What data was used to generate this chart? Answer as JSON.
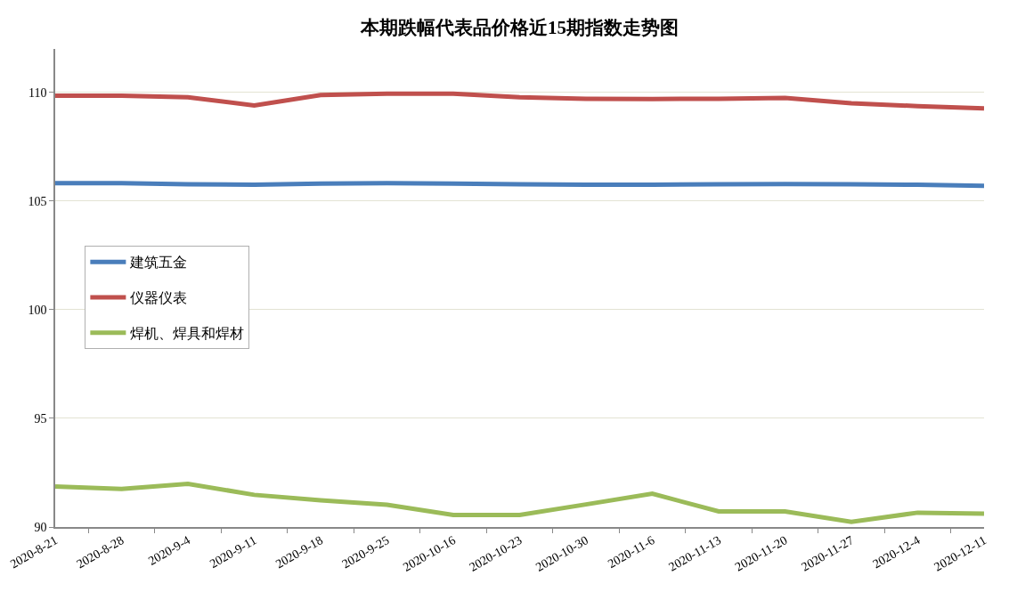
{
  "chart_data": {
    "type": "line",
    "title": "本期跌幅代表品价格近15期指数走势图",
    "categories": [
      "2020-8-21",
      "2020-8-28",
      "2020-9-4",
      "2020-9-11",
      "2020-9-18",
      "2020-9-25",
      "2020-10-16",
      "2020-10-23",
      "2020-10-30",
      "2020-11-6",
      "2020-11-13",
      "2020-11-20",
      "2020-11-27",
      "2020-12-4",
      "2020-12-11"
    ],
    "series": [
      {
        "name": "建筑五金",
        "color": "#4a7ebb",
        "values": [
          105.82,
          105.82,
          105.77,
          105.75,
          105.8,
          105.82,
          105.8,
          105.77,
          105.75,
          105.75,
          105.77,
          105.78,
          105.77,
          105.75,
          105.7
        ]
      },
      {
        "name": "仪器仪表",
        "color": "#c0504d",
        "values": [
          109.85,
          109.85,
          109.78,
          109.4,
          109.88,
          109.94,
          109.94,
          109.78,
          109.71,
          109.7,
          109.71,
          109.75,
          109.5,
          109.37,
          109.27
        ]
      },
      {
        "name": "焊机、焊具和焊材",
        "color": "#9bbb59",
        "values": [
          91.86,
          91.75,
          91.99,
          91.48,
          91.23,
          91.02,
          90.55,
          90.55,
          91.04,
          91.53,
          90.72,
          90.72,
          90.24,
          90.66,
          90.61
        ]
      }
    ],
    "ylim": [
      90,
      112
    ],
    "yticks": [
      90,
      95,
      100,
      105,
      110
    ],
    "grid": "y",
    "legend": "left",
    "marker": "none",
    "line_style": "solid"
  }
}
